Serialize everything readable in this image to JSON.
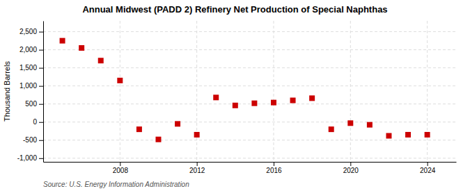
{
  "chart_data": {
    "type": "scatter",
    "title": "Annual Midwest (PADD 2) Refinery Net Production of Special Naphthas",
    "ylabel": "Thousand Barrels",
    "annotations": [
      "Source: U.S. Energy Information Administration"
    ],
    "x": [
      2005,
      2006,
      2007,
      2008,
      2009,
      2010,
      2011,
      2012,
      2013,
      2014,
      2015,
      2016,
      2017,
      2018,
      2019,
      2020,
      2021,
      2022,
      2023,
      2024
    ],
    "values": [
      2250,
      2050,
      1700,
      1150,
      -200,
      -480,
      -50,
      -350,
      680,
      460,
      520,
      540,
      600,
      660,
      -200,
      -30,
      -75,
      -380,
      -350,
      -350
    ],
    "color": "#cc0000",
    "marker": "square",
    "xlim": [
      2004.0,
      2025.5
    ],
    "ylim": [
      -1100,
      2800
    ],
    "xticks": [
      2008,
      2012,
      2016,
      2020,
      2024
    ],
    "yticks": [
      {
        "value": -1000,
        "label": "-1,000"
      },
      -500,
      0,
      500,
      {
        "value": 1000,
        "label": "1,000"
      },
      {
        "value": 1500,
        "label": "1,500"
      },
      {
        "value": 2000,
        "label": "2,000"
      },
      {
        "value": 2500,
        "label": "2,500"
      }
    ],
    "grid": true
  }
}
